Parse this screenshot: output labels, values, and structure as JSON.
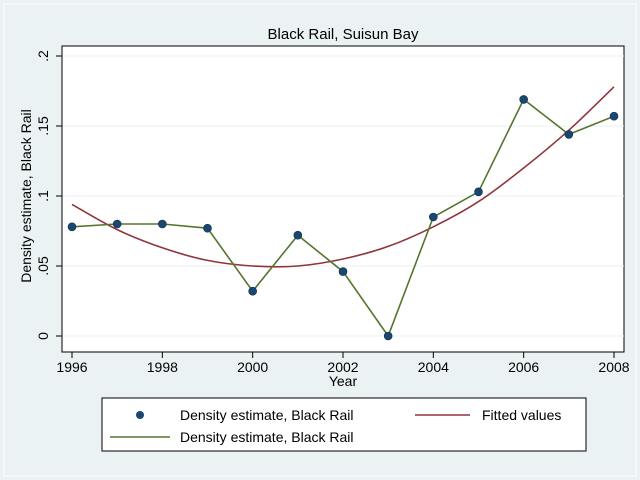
{
  "chart_data": {
    "type": "line",
    "title": "Black Rail, Suisun Bay",
    "xlabel": "Year",
    "ylabel": "Density estimate, Black Rail",
    "xlim": [
      1996,
      2008
    ],
    "ylim": [
      0,
      0.2
    ],
    "xticks": [
      {
        "value": 1996,
        "label": "1996"
      },
      {
        "value": 1998,
        "label": "1998"
      },
      {
        "value": 2000,
        "label": "2000"
      },
      {
        "value": 2002,
        "label": "2002"
      },
      {
        "value": 2004,
        "label": "2004"
      },
      {
        "value": 2006,
        "label": "2006"
      },
      {
        "value": 2008,
        "label": "2008"
      }
    ],
    "yticks": [
      {
        "value": 0,
        "label": "0"
      },
      {
        "value": 0.05,
        "label": ".05"
      },
      {
        "value": 0.1,
        "label": ".1"
      },
      {
        "value": 0.15,
        "label": ".15"
      },
      {
        "value": 0.2,
        "label": ".2"
      }
    ],
    "grid": "horizontal",
    "legend_position": "bottom",
    "x": [
      1996,
      1997,
      1998,
      1999,
      2000,
      2001,
      2002,
      2003,
      2004,
      2005,
      2006,
      2007,
      2008
    ],
    "series": [
      {
        "name": "Density estimate, Black Rail",
        "kind": "scatter",
        "color": "#1a476f",
        "values": [
          0.078,
          0.08,
          0.08,
          0.077,
          0.032,
          0.072,
          0.046,
          0.0,
          0.085,
          0.103,
          0.169,
          0.144,
          0.157
        ]
      },
      {
        "name": "Fitted values",
        "kind": "line",
        "color": "#90353b",
        "values": [
          0.094,
          0.076,
          0.063,
          0.054,
          0.05,
          0.05,
          0.055,
          0.064,
          0.078,
          0.096,
          0.12,
          0.147,
          0.178
        ]
      },
      {
        "name": "Density estimate, Black Rail",
        "kind": "line",
        "color": "#55752f",
        "values": [
          0.078,
          0.08,
          0.08,
          0.077,
          0.032,
          0.072,
          0.046,
          0.0,
          0.085,
          0.103,
          0.169,
          0.144,
          0.157
        ]
      }
    ]
  }
}
